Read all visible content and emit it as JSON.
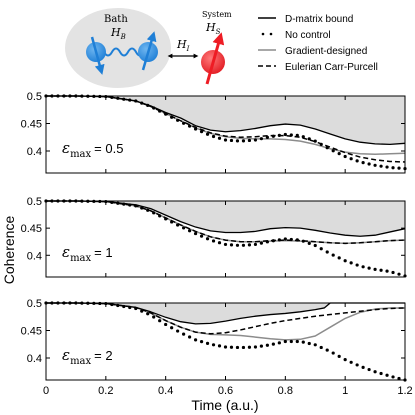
{
  "chart_data": [
    {
      "type": "line",
      "annotation_main": "ε",
      "annotation_sub": "max",
      "annotation_value": "= 0.5",
      "xlim": [
        0,
        1.2
      ],
      "ylim": [
        0.36,
        0.5
      ],
      "yticks": [
        "0.5",
        "0.45",
        "0.4"
      ],
      "series": [
        {
          "name": "D-matrix bound",
          "x": [
            0,
            0.1,
            0.2,
            0.3,
            0.35,
            0.4,
            0.45,
            0.5,
            0.55,
            0.6,
            0.65,
            0.7,
            0.75,
            0.8,
            0.85,
            0.9,
            0.95,
            1.0,
            1.05,
            1.1,
            1.15,
            1.2
          ],
          "values": [
            0.5,
            0.5,
            0.499,
            0.491,
            0.482,
            0.47,
            0.46,
            0.446,
            0.438,
            0.435,
            0.437,
            0.441,
            0.446,
            0.449,
            0.447,
            0.44,
            0.431,
            0.422,
            0.416,
            0.413,
            0.412,
            0.414
          ]
        },
        {
          "name": "No control",
          "x": [
            0,
            0.1,
            0.2,
            0.3,
            0.35,
            0.4,
            0.45,
            0.5,
            0.55,
            0.6,
            0.65,
            0.7,
            0.75,
            0.8,
            0.85,
            0.9,
            0.95,
            1.0,
            1.05,
            1.1,
            1.15,
            1.2
          ],
          "values": [
            0.5,
            0.5,
            0.499,
            0.491,
            0.481,
            0.467,
            0.453,
            0.44,
            0.428,
            0.42,
            0.418,
            0.42,
            0.426,
            0.43,
            0.428,
            0.418,
            0.403,
            0.39,
            0.38,
            0.374,
            0.37,
            0.368
          ]
        },
        {
          "name": "Gradient-designed",
          "x": [
            0,
            0.1,
            0.2,
            0.3,
            0.35,
            0.4,
            0.45,
            0.5,
            0.55,
            0.6,
            0.65,
            0.7,
            0.75,
            0.8,
            0.85,
            0.9,
            0.95,
            1.0,
            1.05,
            1.1,
            1.15,
            1.2
          ],
          "values": [
            0.5,
            0.5,
            0.499,
            0.491,
            0.481,
            0.468,
            0.455,
            0.442,
            0.432,
            0.426,
            0.423,
            0.422,
            0.422,
            0.421,
            0.418,
            0.412,
            0.404,
            0.398,
            0.395,
            0.394,
            0.395,
            0.396
          ]
        },
        {
          "name": "Eulerian Carr-Purcell",
          "x": [
            0,
            0.1,
            0.2,
            0.3,
            0.35,
            0.4,
            0.45,
            0.5,
            0.55,
            0.6,
            0.65,
            0.7,
            0.75,
            0.8,
            0.85,
            0.9,
            0.95,
            1.0,
            1.05,
            1.1,
            1.15,
            1.2
          ],
          "values": [
            0.5,
            0.5,
            0.499,
            0.491,
            0.481,
            0.468,
            0.455,
            0.443,
            0.433,
            0.427,
            0.425,
            0.426,
            0.428,
            0.428,
            0.425,
            0.417,
            0.407,
            0.397,
            0.389,
            0.384,
            0.381,
            0.38
          ]
        }
      ]
    },
    {
      "type": "line",
      "annotation_main": "ε",
      "annotation_sub": "max",
      "annotation_value": "= 1",
      "xlim": [
        0,
        1.2
      ],
      "ylim": [
        0.36,
        0.5
      ],
      "yticks": [
        "0.5",
        "0.45",
        "0.4"
      ],
      "series": [
        {
          "name": "D-matrix bound",
          "x": [
            0,
            0.1,
            0.2,
            0.3,
            0.35,
            0.4,
            0.45,
            0.5,
            0.55,
            0.6,
            0.65,
            0.7,
            0.75,
            0.8,
            0.85,
            0.9,
            0.95,
            1.0,
            1.05,
            1.1,
            1.15,
            1.2
          ],
          "values": [
            0.5,
            0.5,
            0.499,
            0.493,
            0.486,
            0.474,
            0.462,
            0.452,
            0.445,
            0.442,
            0.442,
            0.444,
            0.449,
            0.451,
            0.45,
            0.446,
            0.441,
            0.437,
            0.435,
            0.437,
            0.443,
            0.449
          ]
        },
        {
          "name": "No control",
          "x": [
            0,
            0.1,
            0.2,
            0.3,
            0.35,
            0.4,
            0.45,
            0.5,
            0.55,
            0.6,
            0.65,
            0.7,
            0.75,
            0.8,
            0.85,
            0.9,
            0.95,
            1.0,
            1.05,
            1.1,
            1.15,
            1.2
          ],
          "values": [
            0.5,
            0.5,
            0.499,
            0.491,
            0.481,
            0.467,
            0.453,
            0.44,
            0.428,
            0.42,
            0.418,
            0.42,
            0.426,
            0.43,
            0.428,
            0.418,
            0.403,
            0.39,
            0.38,
            0.374,
            0.37,
            0.362
          ]
        },
        {
          "name": "Gradient-designed",
          "x": [
            0,
            0.1,
            0.2,
            0.3,
            0.35,
            0.4,
            0.45,
            0.5,
            0.55,
            0.6,
            0.65,
            0.7,
            0.75,
            0.8,
            0.85,
            0.9,
            0.95,
            1.0,
            1.05,
            1.1,
            1.15,
            1.2
          ],
          "values": [
            0.5,
            0.5,
            0.499,
            0.491,
            0.482,
            0.469,
            0.456,
            0.444,
            0.434,
            0.428,
            0.425,
            0.425,
            0.426,
            0.427,
            0.426,
            0.425,
            0.423,
            0.422,
            0.423,
            0.425,
            0.427,
            0.428
          ]
        },
        {
          "name": "Eulerian Carr-Purcell",
          "x": [
            0,
            0.1,
            0.2,
            0.3,
            0.35,
            0.4,
            0.45,
            0.5,
            0.55,
            0.6,
            0.65,
            0.7,
            0.75,
            0.8,
            0.85,
            0.9,
            0.95,
            1.0,
            1.05,
            1.1,
            1.15,
            1.2
          ],
          "values": [
            0.5,
            0.5,
            0.499,
            0.491,
            0.482,
            0.469,
            0.456,
            0.444,
            0.434,
            0.428,
            0.425,
            0.425,
            0.427,
            0.428,
            0.427,
            0.425,
            0.423,
            0.422,
            0.423,
            0.425,
            0.427,
            0.428
          ]
        }
      ]
    },
    {
      "type": "line",
      "annotation_main": "ε",
      "annotation_sub": "max",
      "annotation_value": "= 2",
      "xlim": [
        0,
        1.2
      ],
      "ylim": [
        0.36,
        0.5
      ],
      "yticks": [
        "0.5",
        "0.45",
        "0.4"
      ],
      "xticks": [
        "0",
        "0.2",
        "0.4",
        "0.6",
        "0.8",
        "1",
        "1.2"
      ],
      "series": [
        {
          "name": "D-matrix bound",
          "x": [
            0,
            0.1,
            0.2,
            0.3,
            0.35,
            0.4,
            0.45,
            0.5,
            0.55,
            0.6,
            0.65,
            0.7,
            0.75,
            0.8,
            0.85,
            0.9,
            0.93,
            0.95,
            1.0,
            1.05,
            1.1,
            1.15,
            1.2
          ],
          "values": [
            0.5,
            0.5,
            0.499,
            0.492,
            0.484,
            0.474,
            0.466,
            0.462,
            0.463,
            0.467,
            0.472,
            0.476,
            0.479,
            0.481,
            0.484,
            0.488,
            0.491,
            0.5,
            0.5,
            0.5,
            0.5,
            0.5,
            0.5
          ]
        },
        {
          "name": "No control",
          "x": [
            0,
            0.1,
            0.2,
            0.3,
            0.35,
            0.4,
            0.45,
            0.5,
            0.55,
            0.6,
            0.65,
            0.7,
            0.75,
            0.8,
            0.85,
            0.9,
            0.95,
            1.0,
            1.05,
            1.1,
            1.15,
            1.2
          ],
          "values": [
            0.5,
            0.5,
            0.499,
            0.49,
            0.478,
            0.461,
            0.446,
            0.433,
            0.425,
            0.42,
            0.419,
            0.42,
            0.424,
            0.43,
            0.43,
            0.424,
            0.412,
            0.397,
            0.385,
            0.375,
            0.367,
            0.36
          ]
        },
        {
          "name": "Gradient-designed",
          "x": [
            0,
            0.1,
            0.2,
            0.3,
            0.35,
            0.4,
            0.45,
            0.5,
            0.55,
            0.6,
            0.65,
            0.7,
            0.75,
            0.8,
            0.85,
            0.9,
            0.95,
            1.0,
            1.05,
            1.1,
            1.15,
            1.2
          ],
          "values": [
            0.5,
            0.5,
            0.499,
            0.492,
            0.482,
            0.468,
            0.456,
            0.447,
            0.443,
            0.442,
            0.441,
            0.438,
            0.435,
            0.433,
            0.434,
            0.44,
            0.456,
            0.472,
            0.483,
            0.489,
            0.491,
            0.491
          ]
        },
        {
          "name": "Eulerian Carr-Purcell",
          "x": [
            0,
            0.1,
            0.2,
            0.3,
            0.35,
            0.4,
            0.45,
            0.5,
            0.55,
            0.6,
            0.65,
            0.7,
            0.75,
            0.8,
            0.85,
            0.9,
            0.95,
            1.0,
            1.05,
            1.1,
            1.15,
            1.2
          ],
          "values": [
            0.5,
            0.5,
            0.499,
            0.492,
            0.482,
            0.468,
            0.456,
            0.447,
            0.444,
            0.446,
            0.451,
            0.457,
            0.463,
            0.468,
            0.472,
            0.476,
            0.479,
            0.482,
            0.485,
            0.488,
            0.49,
            0.491
          ]
        }
      ]
    }
  ],
  "axes": {
    "ylabel": "Coherence",
    "xlabel": "Time (a.u.)"
  },
  "legend": {
    "items": [
      {
        "label": "D-matrix bound",
        "style": "solid-black"
      },
      {
        "label": "No control",
        "style": "dotted-black"
      },
      {
        "label": "Gradient-designed",
        "style": "solid-gray"
      },
      {
        "label": "Eulerian Carr-Purcell",
        "style": "dashed-black"
      }
    ]
  },
  "schematic": {
    "bath_label": "Bath",
    "bath_symbol": "H",
    "bath_sub": "B",
    "system_label": "System",
    "system_symbol": "H",
    "system_sub": "S",
    "coupling_symbol": "H",
    "coupling_sub": "I"
  },
  "colors": {
    "bound_fill": "#dcdcdc",
    "bound_line": "#000000",
    "gradient_line": "#8c8c8c",
    "bath_spin": "#1f7fd6",
    "system_spin": "#ee1c24",
    "bath_ellipse": "#e3e3e3"
  }
}
